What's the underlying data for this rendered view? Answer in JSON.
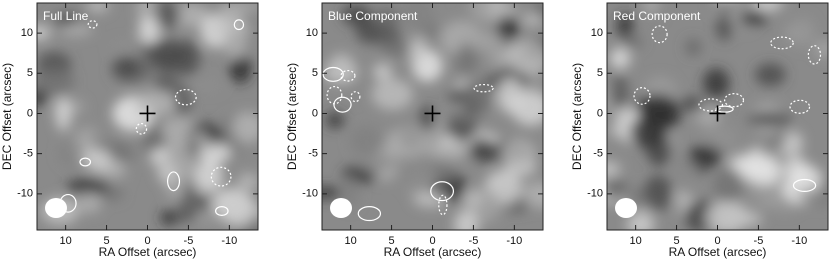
{
  "chart_data": [
    {
      "type": "image",
      "title": "Full Line",
      "xlabel": "RA Offset (arcsec)",
      "ylabel": "DEC Offset (arcsec)",
      "xlim": [
        13.5,
        -13.5
      ],
      "ylim": [
        -14.5,
        13.75
      ],
      "xticks": [
        10,
        5,
        0,
        -5,
        -10
      ],
      "yticks": [
        10,
        5,
        0,
        -5,
        -10
      ],
      "marker": {
        "x": 0,
        "y": 0
      }
    },
    {
      "type": "image",
      "title": "Blue Component",
      "xlabel": "RA Offset (arcsec)",
      "ylabel": "DEC Offset (arcsec)",
      "xlim": [
        13.5,
        -13.5
      ],
      "ylim": [
        -14.5,
        13.75
      ],
      "xticks": [
        10,
        5,
        0,
        -5,
        -10
      ],
      "yticks": [
        10,
        5,
        0,
        -5,
        -10
      ],
      "marker": {
        "x": 0,
        "y": 0
      }
    },
    {
      "type": "image",
      "title": "Red Component",
      "xlabel": "RA Offset (arcsec)",
      "ylabel": "DEC Offset (arcsec)",
      "xlim": [
        13.5,
        -13.5
      ],
      "ylim": [
        -14.5,
        13.75
      ],
      "xticks": [
        10,
        5,
        0,
        -5,
        -10
      ],
      "yticks": [
        10,
        5,
        0,
        -5,
        -10
      ],
      "marker": {
        "x": 0,
        "y": 0
      }
    }
  ]
}
